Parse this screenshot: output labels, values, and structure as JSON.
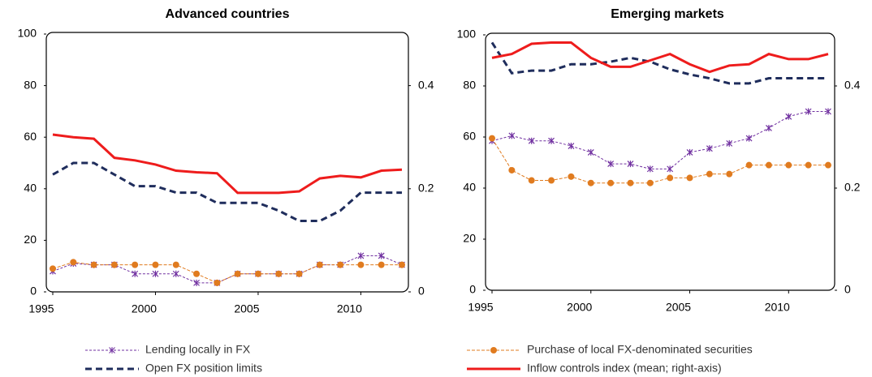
{
  "chart_data": [
    {
      "type": "line",
      "title": "Advanced countries",
      "x": [
        1995,
        1996,
        1997,
        1998,
        1999,
        2000,
        2001,
        2002,
        2003,
        2004,
        2005,
        2006,
        2007,
        2008,
        2009,
        2010,
        2011,
        2012
      ],
      "xlim": [
        1995,
        2012
      ],
      "xticks": [
        1995,
        2000,
        2005,
        2010
      ],
      "ylim": [
        0,
        100
      ],
      "yticks": [
        0,
        20,
        40,
        60,
        80,
        100
      ],
      "y2lim": [
        0,
        0.5
      ],
      "y2ticks": [
        0,
        0.2,
        0.4
      ],
      "series": [
        {
          "values": [
            8,
            11,
            10.5,
            10.5,
            7,
            7,
            7,
            3.5,
            3.5,
            7,
            7,
            7,
            7,
            10.5,
            10.5,
            14,
            14,
            10.5
          ]
        },
        {
          "values": [
            9,
            11.5,
            10.5,
            10.5,
            10.5,
            10.5,
            10.5,
            7,
            3.5,
            7,
            7,
            7,
            7,
            10.5,
            10.5,
            10.5,
            10.5,
            10.5
          ]
        },
        {
          "values": [
            45.5,
            50,
            50,
            45.5,
            41,
            41,
            38.5,
            38.5,
            34.5,
            34.5,
            34.5,
            31.5,
            27.5,
            27.5,
            31.5,
            38.5,
            38.5,
            38.5
          ]
        },
        {
          "axis": "y2",
          "values": [
            0.305,
            0.3,
            0.297,
            0.26,
            0.255,
            0.247,
            0.235,
            0.232,
            0.23,
            0.192,
            0.192,
            0.192,
            0.195,
            0.22,
            0.225,
            0.222,
            0.235,
            0.237
          ]
        }
      ]
    },
    {
      "type": "line",
      "title": "Emerging markets",
      "x": [
        1995,
        1996,
        1997,
        1998,
        1999,
        2000,
        2001,
        2002,
        2003,
        2004,
        2005,
        2006,
        2007,
        2008,
        2009,
        2010,
        2011,
        2012
      ],
      "xlim": [
        1995,
        2012
      ],
      "xticks": [
        1995,
        2000,
        2005,
        2010
      ],
      "ylim": [
        0,
        100
      ],
      "yticks": [
        0,
        20,
        40,
        60,
        80,
        100
      ],
      "y2lim": [
        0,
        0.5
      ],
      "y2ticks": [
        0,
        0.2,
        0.4
      ],
      "series": [
        {
          "values": [
            58.5,
            60.5,
            58.5,
            58.5,
            56.5,
            54,
            49.5,
            49.5,
            47.5,
            47.5,
            54,
            55.5,
            57.5,
            59.5,
            63.5,
            68,
            70,
            70
          ]
        },
        {
          "values": [
            59.5,
            47,
            43,
            43,
            44.5,
            42,
            42,
            42,
            42,
            44,
            44,
            45.5,
            45.5,
            49,
            49,
            49,
            49,
            49
          ]
        },
        {
          "values": [
            97,
            85,
            86,
            86,
            88.5,
            88.5,
            89.5,
            91,
            89.5,
            86.5,
            84.5,
            83,
            81,
            81,
            83,
            83,
            83,
            83
          ]
        },
        {
          "axis": "y2",
          "values": [
            0.455,
            0.4625,
            0.4825,
            0.485,
            0.485,
            0.455,
            0.4375,
            0.4375,
            0.45,
            0.4625,
            0.4425,
            0.4275,
            0.44,
            0.4425,
            0.4625,
            0.4525,
            0.4525,
            0.4625
          ]
        }
      ]
    }
  ],
  "legend": [
    {
      "name": "Lending locally in FX",
      "color": "#7030a0",
      "dash": "3,2",
      "width": 1,
      "marker": "x"
    },
    {
      "name": "Purchase of local FX-denominated  securities",
      "color": "#e07b1f",
      "dash": "4,2",
      "width": 1,
      "marker": "circle"
    },
    {
      "name": "Open FX position limits",
      "color": "#1f2d5c",
      "dash": "8,5",
      "width": 3,
      "marker": null
    },
    {
      "name": "Inflow controls index (mean; right-axis)",
      "color": "#ee1c1c",
      "dash": null,
      "width": 3,
      "marker": null
    }
  ]
}
